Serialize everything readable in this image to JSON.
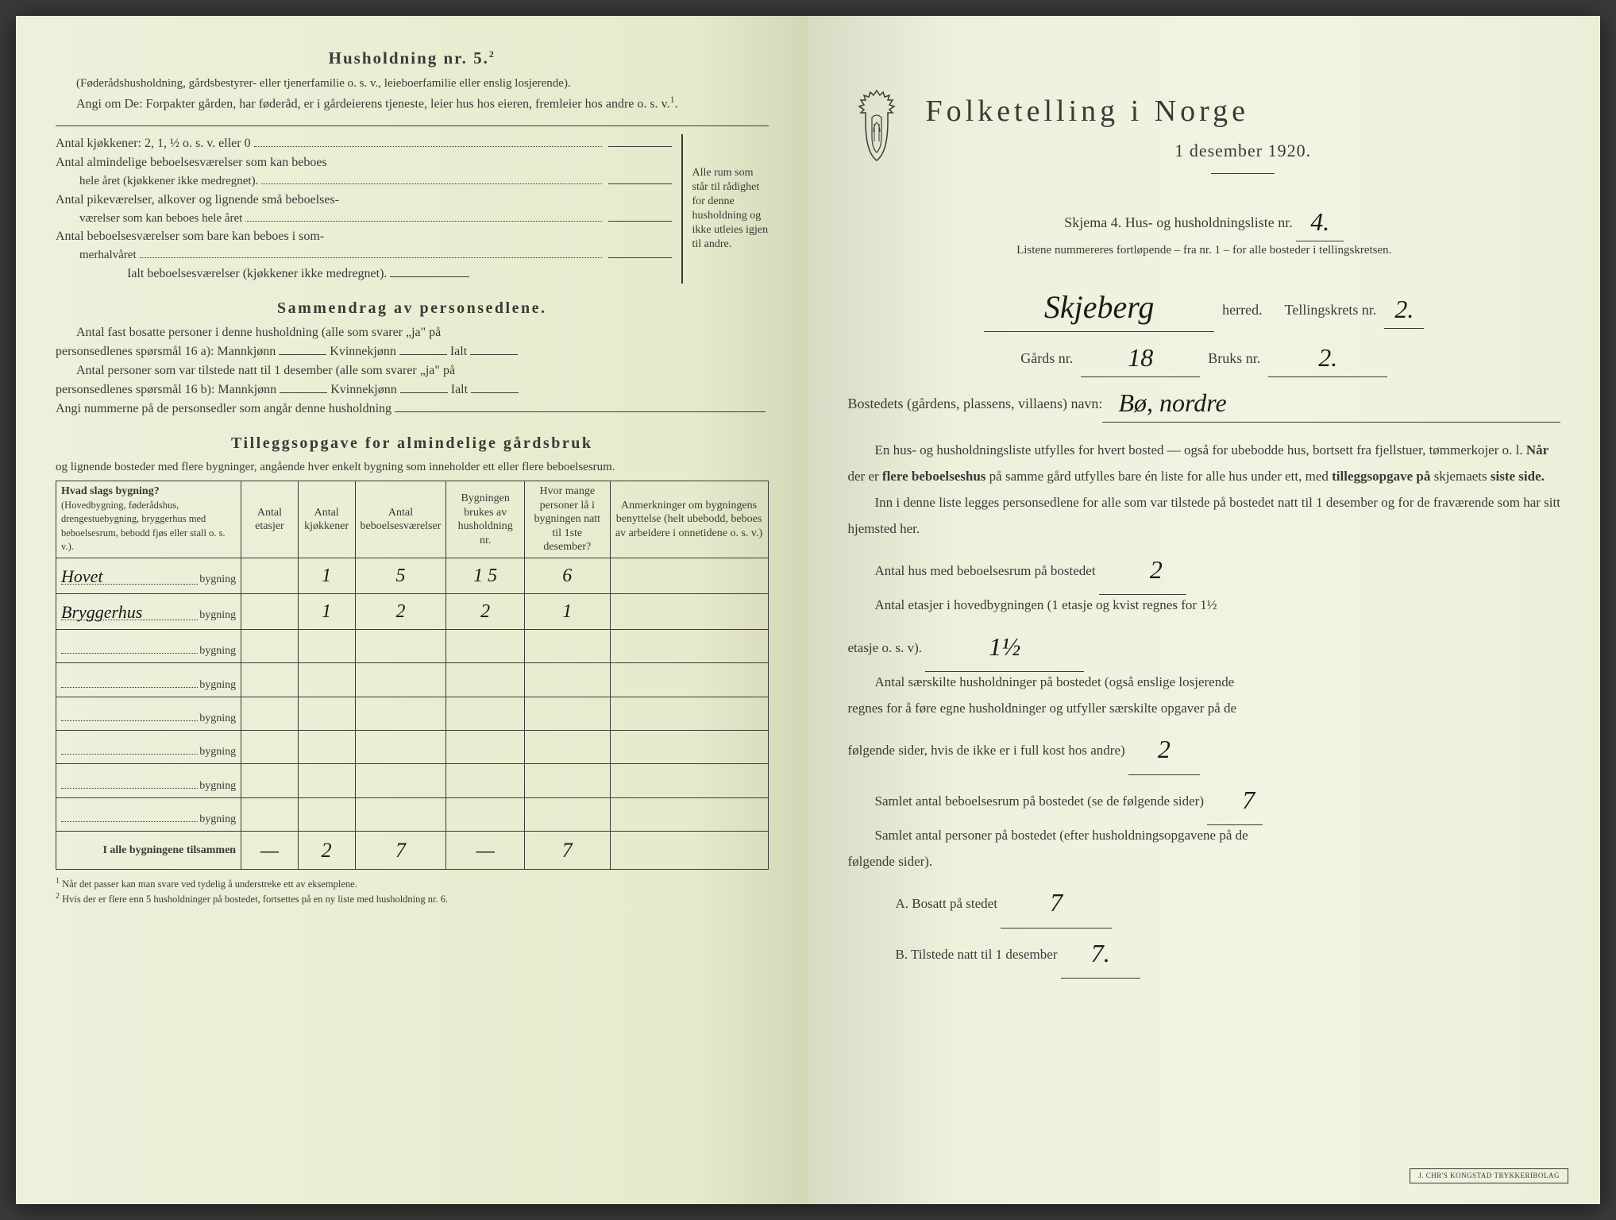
{
  "colors": {
    "paper_left": "#eef0dc",
    "paper_right": "#f2f4e2",
    "ink": "#3a3a36",
    "handwriting": "#1a1a18",
    "background": "#3a3a38"
  },
  "left": {
    "husholdning_title": "Husholdning nr. 5.",
    "husholdning_note": "(Føderådshusholdning, gårdsbestyrer- eller tjenerfamilie o. s. v., leieboerfamilie eller enslig losjerende).",
    "husholdning_instruks": "Angi om De: Forpakter gården, har føderåd, er i gårdeierens tjeneste, leier hus hos eieren, fremleier hos andre o. s. v.",
    "antal_kjokkener_label": "Antal kjøkkener: 2, 1, ½ o. s. v. eller 0",
    "antal_almindelige_label": "Antal almindelige beboelsesværelser som kan beboes",
    "antal_almindelige_sub": "hele året (kjøkkener ikke medregnet).",
    "antal_pike_label": "Antal pikeværelser, alkover og lignende små beboelses-",
    "antal_pike_sub": "værelser som kan beboes hele året",
    "antal_sommer_label": "Antal beboelsesværelser som bare kan beboes i som-",
    "antal_sommer_sub": "merhalvåret",
    "ialt_label": "Ialt beboelsesværelser  (kjøkkener ikke medregnet).",
    "brace_text": "Alle rum som står til rådighet for denne husholdning og ikke utleies igjen til andre.",
    "sammendrag_title": "Sammendrag av personsedlene.",
    "sammendrag_l1a": "Antal fast bosatte personer i denne husholdning (alle som svarer „ja\" på",
    "sammendrag_l1b": "personsedlenes spørsmål 16 a): Mannkjønn",
    "sammendrag_kv": "Kvinnekjønn",
    "sammendrag_ialt": "Ialt",
    "sammendrag_l2a": "Antal personer som var tilstede natt til 1 desember (alle som svarer „ja\" på",
    "sammendrag_l2b": "personsedlenes spørsmål 16 b): Mannkjønn",
    "sammendrag_l3": "Angi nummerne på de personsedler som angår denne husholdning",
    "tillegg_title": "Tilleggsopgave for almindelige gårdsbruk",
    "tillegg_sub": "og lignende bosteder med flere bygninger, angående hver enkelt bygning som inneholder ett eller flere beboelsesrum.",
    "table": {
      "headers": {
        "col1": "Hvad slags bygning?",
        "col1_sub": "(Hovedbygning, føderådshus, drengestuebygning, bryggerhus med beboelsesrum, bebodd fjøs eller stall o. s. v.).",
        "col2": "Antal etasjer",
        "col3": "Antal kjøkkener",
        "col4": "Antal beboelsesværelser",
        "col5": "Bygningen brukes av husholdning nr.",
        "col6": "Hvor mange personer lå i bygningen natt til 1ste desember?",
        "col7": "Anmerkninger om bygningens benyttelse (helt ubebodd, beboes av arbeidere i onnetidene o. s. v.)"
      },
      "row_suffix": "bygning",
      "rows": [
        {
          "name": "Hovet",
          "etasjer": "",
          "kjokken": "1",
          "vaer": "5",
          "hushold": "1 5",
          "personer": "6",
          "anm": ""
        },
        {
          "name": "Bryggerhus",
          "etasjer": "",
          "kjokken": "1",
          "vaer": "2",
          "hushold": "2",
          "personer": "1",
          "anm": ""
        },
        {
          "name": "",
          "etasjer": "",
          "kjokken": "",
          "vaer": "",
          "hushold": "",
          "personer": "",
          "anm": ""
        },
        {
          "name": "",
          "etasjer": "",
          "kjokken": "",
          "vaer": "",
          "hushold": "",
          "personer": "",
          "anm": ""
        },
        {
          "name": "",
          "etasjer": "",
          "kjokken": "",
          "vaer": "",
          "hushold": "",
          "personer": "",
          "anm": ""
        },
        {
          "name": "",
          "etasjer": "",
          "kjokken": "",
          "vaer": "",
          "hushold": "",
          "personer": "",
          "anm": ""
        },
        {
          "name": "",
          "etasjer": "",
          "kjokken": "",
          "vaer": "",
          "hushold": "",
          "personer": "",
          "anm": ""
        },
        {
          "name": "",
          "etasjer": "",
          "kjokken": "",
          "vaer": "",
          "hushold": "",
          "personer": "",
          "anm": ""
        }
      ],
      "total_label": "I alle bygningene tilsammen",
      "total": {
        "etasjer": "—",
        "kjokken": "2",
        "vaer": "7",
        "hushold": "—",
        "personer": "7",
        "anm": ""
      }
    },
    "footnote1": "Når det passer kan man svare ved tydelig å understreke ett av eksemplene.",
    "footnote2": "Hvis der er flere enn 5 husholdninger på bostedet, fortsettes på en ny liste med husholdning nr. 6."
  },
  "right": {
    "title": "Folketelling i Norge",
    "subtitle": "1 desember 1920.",
    "skjema_line": "Skjema 4.  Hus- og husholdningsliste nr.",
    "skjema_nr": "4.",
    "listene_line": "Listene nummereres fortløpende – fra nr. 1 – for alle bosteder i tellingskretsen.",
    "herred_value": "Skjeberg",
    "herred_label": "herred.",
    "tellingskrets_label": "Tellingskrets nr.",
    "tellingskrets_nr": "2.",
    "gards_label": "Gårds nr.",
    "gards_nr": "18",
    "bruks_label": "Bruks nr.",
    "bruks_nr": "2.",
    "bosted_label": "Bostedets (gårdens, plassens, villaens) navn:",
    "bosted_value": "Bø, nordre",
    "para1": "En hus- og husholdningsliste utfylles for hvert bosted — også for ubebodde hus, bortsett fra fjellstuer, tømmerkojer o. l.  Når der er flere beboelseshus på samme gård utfylles bare én liste for alle hus under ett, med tilleggsopgave på skjemaets siste side.",
    "para2": "Inn i denne liste legges personsedlene for alle som var tilstede på bostedet natt til 1 desember og for de fraværende som har sitt hjemsted her.",
    "antal_hus_label": "Antal hus med beboelsesrum på bostedet",
    "antal_hus_value": "2",
    "antal_etasjer_label_a": "Antal etasjer i hovedbygningen (1 etasje og kvist regnes for 1½",
    "antal_etasjer_label_b": "etasje o. s. v).",
    "antal_etasjer_value": "1½",
    "antal_hushold_label_a": "Antal særskilte husholdninger på bostedet (også enslige losjerende",
    "antal_hushold_label_b": "regnes for å føre egne husholdninger og utfyller særskilte opgaver på de",
    "antal_hushold_label_c": "følgende sider, hvis de ikke er i full kost hos andre)",
    "antal_hushold_value": "2",
    "samlet_rum_label": "Samlet antal beboelsesrum på bostedet (se de følgende sider)",
    "samlet_rum_value": "7",
    "samlet_pers_label": "Samlet antal personer på bostedet (efter husholdningsopgavene på de",
    "samlet_pers_label_b": "følgende sider).",
    "bosatt_label": "A.  Bosatt på stedet",
    "bosatt_value": "7",
    "tilstede_label": "B.  Tilstede natt til 1 desember",
    "tilstede_value": "7.",
    "stamp": "J. CHR'S KONGSTAD TRYKKERIBOLAG"
  }
}
